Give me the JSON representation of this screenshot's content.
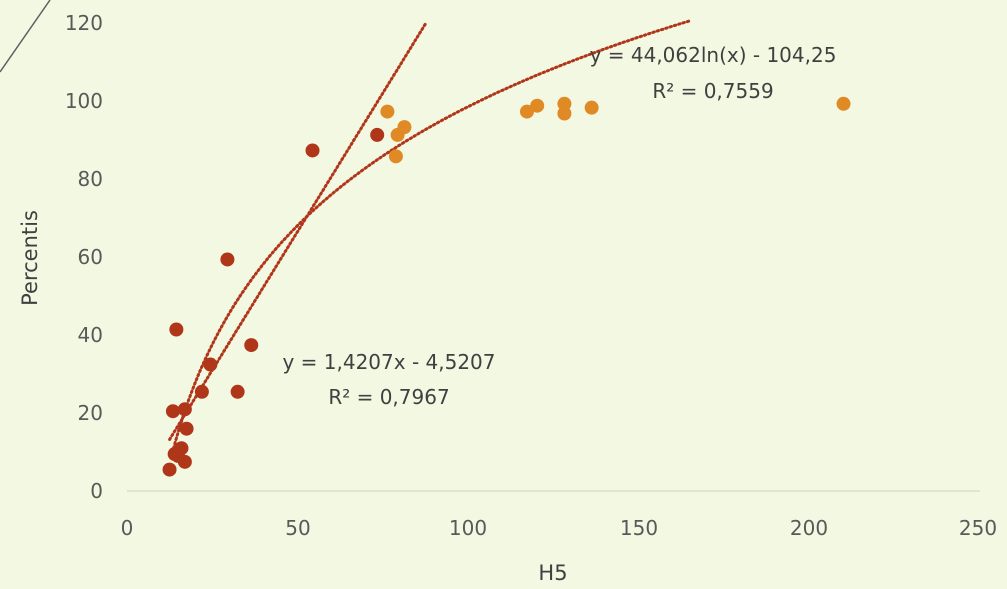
{
  "chart_data": {
    "type": "scatter",
    "title": "",
    "xlabel": "H5",
    "ylabel": "Percentis",
    "xlim": [
      0,
      250
    ],
    "ylim": [
      0,
      120
    ],
    "x_ticks": [
      "0",
      "50",
      "100",
      "150",
      "200",
      "250"
    ],
    "y_ticks": [
      "0",
      "20",
      "40",
      "60",
      "80",
      "100",
      "120"
    ],
    "grid": false,
    "series": [
      {
        "color": "#b0361a",
        "points": [
          {
            "x": 12.5,
            "y": 5.5
          },
          {
            "x": 14,
            "y": 9.5
          },
          {
            "x": 15,
            "y": 9
          },
          {
            "x": 16,
            "y": 11
          },
          {
            "x": 17,
            "y": 7.5
          },
          {
            "x": 13.5,
            "y": 20.5
          },
          {
            "x": 17,
            "y": 21
          },
          {
            "x": 17.5,
            "y": 16
          },
          {
            "x": 14.5,
            "y": 41.5
          },
          {
            "x": 22,
            "y": 25.5
          },
          {
            "x": 24.5,
            "y": 32.5
          },
          {
            "x": 32.5,
            "y": 25.5
          },
          {
            "x": 36.5,
            "y": 37.5
          },
          {
            "x": 29.5,
            "y": 59.5
          },
          {
            "x": 54.5,
            "y": 87.5
          },
          {
            "x": 73.5,
            "y": 91.5
          }
        ],
        "trendline": {
          "kind": "linear",
          "slope": 1.4207,
          "intercept": -4.5207,
          "x_range": [
            12.5,
            88
          ]
        }
      },
      {
        "color": "#e08a25",
        "points": [
          {
            "x": 76.5,
            "y": 97.5
          },
          {
            "x": 79,
            "y": 86
          },
          {
            "x": 79.5,
            "y": 91.5
          },
          {
            "x": 81.5,
            "y": 93.5
          },
          {
            "x": 117.5,
            "y": 97.5
          },
          {
            "x": 120.5,
            "y": 99
          },
          {
            "x": 128.5,
            "y": 99.5
          },
          {
            "x": 128.5,
            "y": 97
          },
          {
            "x": 136.5,
            "y": 98.5
          },
          {
            "x": 210.5,
            "y": 99.5
          }
        ],
        "trendline": {
          "kind": "logarithmic",
          "a": 44.062,
          "b": -104.25,
          "x_range": [
            13,
            165
          ]
        }
      }
    ],
    "annotations": [
      {
        "line1": "y = 44,062ln(x) - 104,25",
        "line2": "R² = 0,7559"
      },
      {
        "line1": "y = 1,4207x - 4,5207",
        "line2": "R² = 0,7967"
      }
    ]
  }
}
